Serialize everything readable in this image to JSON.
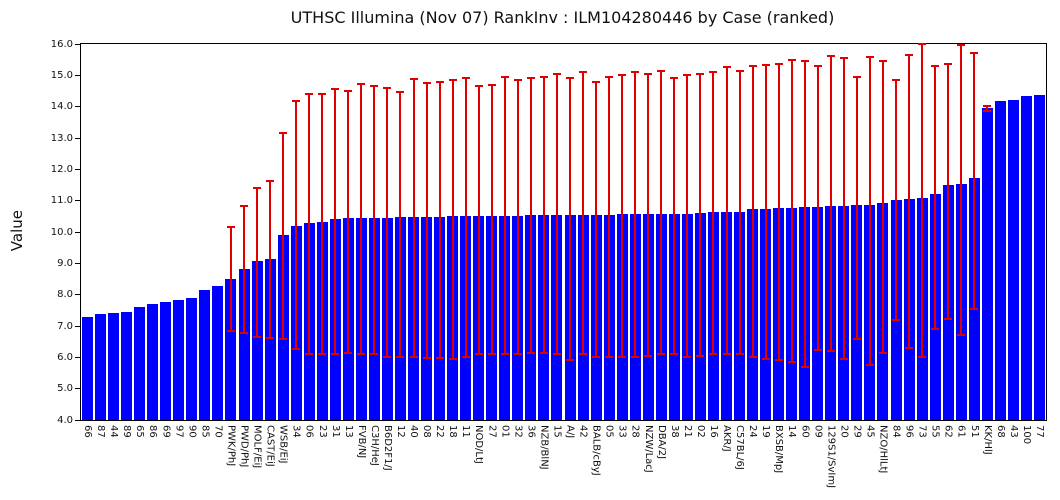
{
  "page": {
    "background": "#ffffff"
  },
  "chart_data": {
    "type": "bar",
    "title": "UTHSC Illumina (Nov 07) RankInv : ILM104280446 by Case (ranked)",
    "ylabel": "Value",
    "xlabel": "",
    "ylim": [
      4.0,
      16.0
    ],
    "ytick_labels": [
      "16.0",
      "15.0",
      "14.0",
      "13.0",
      "12.0",
      "11.0",
      "10.0",
      "9.0",
      "8.0",
      "7.0",
      "6.0",
      "5.0",
      "4.0"
    ],
    "grid": false,
    "legend_position": "none",
    "bar_color": "#0000ff",
    "error_bar_color": "#e00000",
    "axis_color": "#000000",
    "bars": [
      {
        "label": "66",
        "value": 7.3,
        "err_lo": null,
        "err_hi": null
      },
      {
        "label": "87",
        "value": 7.37,
        "err_lo": null,
        "err_hi": null
      },
      {
        "label": "44",
        "value": 7.42,
        "err_lo": null,
        "err_hi": null
      },
      {
        "label": "89",
        "value": 7.44,
        "err_lo": null,
        "err_hi": null
      },
      {
        "label": "65",
        "value": 7.61,
        "err_lo": null,
        "err_hi": null
      },
      {
        "label": "86",
        "value": 7.69,
        "err_lo": null,
        "err_hi": null
      },
      {
        "label": "69",
        "value": 7.77,
        "err_lo": null,
        "err_hi": null
      },
      {
        "label": "97",
        "value": 7.82,
        "err_lo": null,
        "err_hi": null
      },
      {
        "label": "90",
        "value": 7.88,
        "err_lo": null,
        "err_hi": null
      },
      {
        "label": "85",
        "value": 8.14,
        "err_lo": null,
        "err_hi": null
      },
      {
        "label": "70",
        "value": 8.29,
        "err_lo": null,
        "err_hi": null
      },
      {
        "label": "PWK/PhJ",
        "value": 8.5,
        "err_lo": 6.85,
        "err_hi": 10.15
      },
      {
        "label": "PWD/PhJ",
        "value": 8.81,
        "err_lo": 6.78,
        "err_hi": 10.82
      },
      {
        "label": "MOLF/EiJ",
        "value": 9.07,
        "err_lo": 6.65,
        "err_hi": 11.4
      },
      {
        "label": "CAST/EiJ",
        "value": 9.13,
        "err_lo": 6.62,
        "err_hi": 11.62
      },
      {
        "label": "WSB/EiJ",
        "value": 9.9,
        "err_lo": 6.58,
        "err_hi": 13.15
      },
      {
        "label": "34",
        "value": 10.19,
        "err_lo": 6.27,
        "err_hi": 14.17
      },
      {
        "label": "06",
        "value": 10.3,
        "err_lo": 6.12,
        "err_hi": 14.4
      },
      {
        "label": "23",
        "value": 10.33,
        "err_lo": 6.1,
        "err_hi": 14.42
      },
      {
        "label": "31",
        "value": 10.41,
        "err_lo": 6.1,
        "err_hi": 14.55
      },
      {
        "label": "13",
        "value": 10.44,
        "err_lo": 6.15,
        "err_hi": 14.5
      },
      {
        "label": "FVB/NJ",
        "value": 10.44,
        "err_lo": 6.1,
        "err_hi": 14.72
      },
      {
        "label": "C3H/HeJ",
        "value": 10.45,
        "err_lo": 6.1,
        "err_hi": 14.65
      },
      {
        "label": "B6D2F1/J",
        "value": 10.46,
        "err_lo": 6.02,
        "err_hi": 14.6
      },
      {
        "label": "12",
        "value": 10.47,
        "err_lo": 6.0,
        "err_hi": 14.48
      },
      {
        "label": "40",
        "value": 10.48,
        "err_lo": 6.0,
        "err_hi": 14.88
      },
      {
        "label": "08",
        "value": 10.48,
        "err_lo": 5.98,
        "err_hi": 14.75
      },
      {
        "label": "22",
        "value": 10.49,
        "err_lo": 5.98,
        "err_hi": 14.8
      },
      {
        "label": "18",
        "value": 10.5,
        "err_lo": 5.95,
        "err_hi": 14.85
      },
      {
        "label": "11",
        "value": 10.5,
        "err_lo": 6.0,
        "err_hi": 14.92
      },
      {
        "label": "NOD/LtJ",
        "value": 10.5,
        "err_lo": 6.12,
        "err_hi": 14.65
      },
      {
        "label": "27",
        "value": 10.51,
        "err_lo": 6.12,
        "err_hi": 14.68
      },
      {
        "label": "01",
        "value": 10.52,
        "err_lo": 6.1,
        "err_hi": 14.95
      },
      {
        "label": "32",
        "value": 10.52,
        "err_lo": 6.1,
        "err_hi": 14.85
      },
      {
        "label": "36",
        "value": 10.53,
        "err_lo": 6.15,
        "err_hi": 14.92
      },
      {
        "label": "NZB/BlNJ",
        "value": 10.54,
        "err_lo": 6.15,
        "err_hi": 14.95
      },
      {
        "label": "15",
        "value": 10.54,
        "err_lo": 6.1,
        "err_hi": 15.05
      },
      {
        "label": "A/J",
        "value": 10.55,
        "err_lo": 5.9,
        "err_hi": 14.9
      },
      {
        "label": "42",
        "value": 10.55,
        "err_lo": 6.1,
        "err_hi": 15.1
      },
      {
        "label": "BALB/cByJ",
        "value": 10.55,
        "err_lo": 6.0,
        "err_hi": 14.8
      },
      {
        "label": "05",
        "value": 10.55,
        "err_lo": 6.0,
        "err_hi": 14.95
      },
      {
        "label": "33",
        "value": 10.56,
        "err_lo": 6.0,
        "err_hi": 15.0
      },
      {
        "label": "28",
        "value": 10.56,
        "err_lo": 6.0,
        "err_hi": 15.1
      },
      {
        "label": "NZW/LacJ",
        "value": 10.57,
        "err_lo": 6.05,
        "err_hi": 15.05
      },
      {
        "label": "DBA/2J",
        "value": 10.58,
        "err_lo": 6.1,
        "err_hi": 15.15
      },
      {
        "label": "38",
        "value": 10.59,
        "err_lo": 6.1,
        "err_hi": 14.92
      },
      {
        "label": "21",
        "value": 10.59,
        "err_lo": 6.0,
        "err_hi": 15.0
      },
      {
        "label": "02",
        "value": 10.61,
        "err_lo": 6.05,
        "err_hi": 15.05
      },
      {
        "label": "16",
        "value": 10.63,
        "err_lo": 6.1,
        "err_hi": 15.1
      },
      {
        "label": "AKR/J",
        "value": 10.64,
        "err_lo": 6.1,
        "err_hi": 15.28
      },
      {
        "label": "C57BL/6J",
        "value": 10.65,
        "err_lo": 6.1,
        "err_hi": 15.15
      },
      {
        "label": "24",
        "value": 10.72,
        "err_lo": 6.0,
        "err_hi": 15.3
      },
      {
        "label": "19",
        "value": 10.75,
        "err_lo": 5.95,
        "err_hi": 15.32
      },
      {
        "label": "BXSB/MpJ",
        "value": 10.76,
        "err_lo": 5.9,
        "err_hi": 15.35
      },
      {
        "label": "14",
        "value": 10.78,
        "err_lo": 5.85,
        "err_hi": 15.48
      },
      {
        "label": "60",
        "value": 10.8,
        "err_lo": 5.7,
        "err_hi": 15.45
      },
      {
        "label": "09",
        "value": 10.8,
        "err_lo": 6.25,
        "err_hi": 15.3
      },
      {
        "label": "129S1/SvImJ",
        "value": 10.82,
        "err_lo": 6.2,
        "err_hi": 15.62
      },
      {
        "label": "20",
        "value": 10.84,
        "err_lo": 5.95,
        "err_hi": 15.55
      },
      {
        "label": "29",
        "value": 10.85,
        "err_lo": 6.6,
        "err_hi": 14.95
      },
      {
        "label": "45",
        "value": 10.86,
        "err_lo": 5.75,
        "err_hi": 15.6
      },
      {
        "label": "NZO/HlLtJ",
        "value": 10.94,
        "err_lo": 6.15,
        "err_hi": 15.45
      },
      {
        "label": "84",
        "value": 11.01,
        "err_lo": 7.2,
        "err_hi": 14.85
      },
      {
        "label": "96",
        "value": 11.04,
        "err_lo": 6.3,
        "err_hi": 15.65
      },
      {
        "label": "73",
        "value": 11.08,
        "err_lo": 6.0,
        "err_hi": 16.0
      },
      {
        "label": "55",
        "value": 11.22,
        "err_lo": 6.9,
        "err_hi": 15.3
      },
      {
        "label": "62",
        "value": 11.5,
        "err_lo": 7.22,
        "err_hi": 15.35
      },
      {
        "label": "61",
        "value": 11.52,
        "err_lo": 6.7,
        "err_hi": 15.98
      },
      {
        "label": "51",
        "value": 11.71,
        "err_lo": 7.53,
        "err_hi": 15.7
      },
      {
        "label": "KK/HlJ",
        "value": 13.95,
        "err_lo": 13.85,
        "err_hi": 14.02
      },
      {
        "label": "68",
        "value": 14.18,
        "err_lo": null,
        "err_hi": null
      },
      {
        "label": "43",
        "value": 14.21,
        "err_lo": null,
        "err_hi": null
      },
      {
        "label": "100",
        "value": 14.35,
        "err_lo": null,
        "err_hi": null
      },
      {
        "label": "77",
        "value": 14.37,
        "err_lo": null,
        "err_hi": null
      }
    ]
  }
}
